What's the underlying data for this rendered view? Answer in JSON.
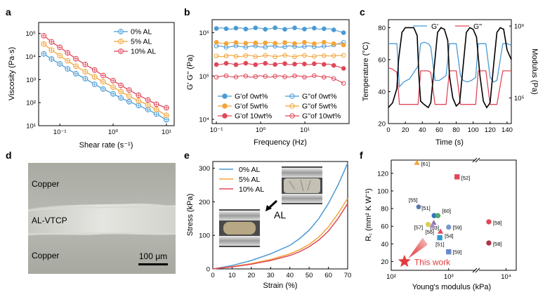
{
  "panels": {
    "a": {
      "letter": "a"
    },
    "b": {
      "letter": "b"
    },
    "c": {
      "letter": "c"
    },
    "d": {
      "letter": "d",
      "labels": {
        "top": "Copper",
        "middle": "AL-VTCP",
        "bottom": "Copper",
        "scalebar": "100 μm"
      }
    },
    "e": {
      "letter": "e",
      "annotation": "AL"
    },
    "f": {
      "letter": "f",
      "highlight": "This work"
    }
  },
  "colors": {
    "blue": "#4a9ad4",
    "orange": "#f2a53a",
    "red": "#e0485a",
    "black": "#000000"
  },
  "chart_data": [
    {
      "panel": "a",
      "type": "line",
      "xlabel": "Shear rate (s⁻¹)",
      "ylabel": "Viscosity (Pa·s)",
      "xscale": "log",
      "yscale": "log",
      "xlim": [
        0.04,
        14
      ],
      "ylim": [
        10,
        300000
      ],
      "xticks": [
        {
          "v": 0.1,
          "label": "10⁻¹"
        },
        {
          "v": 1,
          "label": "10⁰"
        },
        {
          "v": 10,
          "label": "10¹"
        }
      ],
      "yticks": [
        {
          "v": 10,
          "label": "10¹"
        },
        {
          "v": 100,
          "label": "10²"
        },
        {
          "v": 1000,
          "label": "10³"
        },
        {
          "v": 10000,
          "label": "10⁴"
        },
        {
          "v": 100000,
          "label": "10⁵"
        }
      ],
      "legend": "top-right",
      "x": [
        0.05,
        0.07,
        0.1,
        0.14,
        0.2,
        0.3,
        0.45,
        0.65,
        1,
        1.4,
        2,
        3,
        4.5,
        6.5,
        10
      ],
      "series": [
        {
          "name": "0% AL",
          "color": "#4a9ad4",
          "y": [
            13000,
            7800,
            4800,
            2900,
            1800,
            1100,
            620,
            390,
            240,
            160,
            110,
            75,
            50,
            32,
            18
          ]
        },
        {
          "name": "5% AL",
          "color": "#f2a53a",
          "y": [
            35000,
            19000,
            11000,
            6500,
            3800,
            2200,
            1300,
            800,
            470,
            300,
            190,
            120,
            80,
            50,
            28
          ]
        },
        {
          "name": "10% AL",
          "color": "#e0485a",
          "y": [
            80000,
            43000,
            25000,
            14500,
            8000,
            4500,
            2600,
            1500,
            900,
            560,
            350,
            210,
            130,
            85,
            60
          ]
        }
      ]
    },
    {
      "panel": "b",
      "type": "line",
      "xlabel": "Frequency (Hz)",
      "ylabel": "G' G'' (Pa)",
      "xscale": "log",
      "yscale": "log",
      "xlim": [
        0.08,
        100
      ],
      "ylim": [
        8000,
        2000000
      ],
      "xticks": [
        {
          "v": 0.1,
          "label": "10⁻¹"
        },
        {
          "v": 1,
          "label": "10⁰"
        },
        {
          "v": 10,
          "label": "10¹"
        }
      ],
      "yticks": [
        {
          "v": 10000,
          "label": "10⁴"
        },
        {
          "v": 100000,
          "label": "10⁵"
        },
        {
          "v": 1000000,
          "label": "10⁶"
        }
      ],
      "legend": "bottom",
      "series": [
        {
          "name": "G'of 0wt%",
          "color": "#4a9ad4",
          "filled": true,
          "y": 1250000,
          "end": 1000000
        },
        {
          "name": "G''of 0wt%",
          "color": "#4a9ad4",
          "filled": false,
          "y": 480000,
          "end": 600000
        },
        {
          "name": "G'of 5wt%",
          "color": "#f2a53a",
          "filled": true,
          "y": 580000,
          "end": 520000
        },
        {
          "name": "G''of 5wt%",
          "color": "#f2a53a",
          "filled": false,
          "y": 290000,
          "end": 300000
        },
        {
          "name": "G'of 10wt%",
          "color": "#e0485a",
          "filled": true,
          "y": 190000,
          "end": 150000
        },
        {
          "name": "G''of 10wt%",
          "color": "#e0485a",
          "filled": false,
          "y": 98000,
          "end": 68000
        }
      ]
    },
    {
      "panel": "c",
      "type": "line",
      "xlabel": "Time (s)",
      "ylabel": "Temperature (°C)",
      "y2label": "Modulus (Pa)",
      "xlim": [
        0,
        145
      ],
      "ylim": [
        20,
        85
      ],
      "xticks": [
        0,
        20,
        40,
        60,
        80,
        100,
        120,
        140
      ],
      "yticks": [
        20,
        40,
        60,
        80
      ],
      "y2ticks": [
        {
          "label": "10⁵",
          "at": 36
        },
        {
          "label": "10⁶",
          "at": 81
        }
      ],
      "legend": "top",
      "temperature": {
        "color": "#000000",
        "x": [
          0,
          5,
          10,
          12,
          16,
          20,
          25,
          30,
          34,
          36,
          38,
          42,
          47,
          50,
          54,
          58,
          62,
          66,
          70,
          72,
          76,
          80,
          84,
          88,
          92,
          96,
          100,
          104,
          108,
          112,
          116,
          120,
          124,
          128,
          132,
          136,
          140,
          145
        ],
        "y": [
          30,
          33,
          42,
          60,
          77,
          80,
          80,
          80,
          75,
          50,
          34,
          32,
          30,
          33,
          55,
          77,
          80,
          79,
          72,
          50,
          36,
          31,
          33,
          55,
          77,
          80,
          79,
          74,
          50,
          34,
          30,
          33,
          56,
          77,
          80,
          79,
          66,
          60
        ]
      },
      "series": [
        {
          "name": "G'",
          "color": "#4a9ad4",
          "x": [
            0,
            5,
            10,
            13,
            18,
            25,
            30,
            35,
            38,
            42,
            47,
            50,
            55,
            60,
            63,
            68,
            72,
            76,
            80,
            85,
            88,
            93,
            98,
            103,
            106,
            110,
            115,
            120,
            124,
            128,
            135,
            140,
            145
          ],
          "y": [
            70,
            70,
            70,
            43,
            46,
            48,
            52,
            56,
            70,
            71,
            70,
            68,
            47,
            47,
            48,
            50,
            70,
            70,
            70,
            50,
            47,
            46,
            47,
            49,
            70,
            70,
            70,
            49,
            46,
            47,
            70,
            70,
            69
          ]
        },
        {
          "name": "G''",
          "color": "#e0485a",
          "x": [
            0,
            5,
            10,
            13,
            18,
            25,
            30,
            35,
            38,
            42,
            47,
            50,
            55,
            60,
            63,
            68,
            72,
            76,
            80,
            85,
            88,
            93,
            98,
            103,
            106,
            110,
            115,
            120,
            124,
            128,
            135,
            140,
            145
          ],
          "y": [
            55,
            54,
            52,
            32,
            32,
            32,
            32,
            32,
            53,
            53,
            53,
            52,
            32,
            32,
            32,
            32,
            53,
            53,
            53,
            32,
            32,
            32,
            32,
            32,
            53,
            53,
            53,
            32,
            32,
            32,
            53,
            53,
            53
          ]
        }
      ]
    },
    {
      "panel": "e",
      "type": "line",
      "xlabel": "Strain (%)",
      "ylabel": "Stress (kPa)",
      "xlim": [
        0,
        70
      ],
      "ylim": [
        0,
        320
      ],
      "xticks": [
        0,
        10,
        20,
        30,
        40,
        50,
        60,
        70
      ],
      "yticks": [
        0,
        100,
        200,
        300
      ],
      "legend": "top-left",
      "x": [
        0,
        10,
        20,
        30,
        40,
        45,
        50,
        55,
        60,
        65,
        70
      ],
      "series": [
        {
          "name": "0% AL",
          "color": "#4a9ad4",
          "y": [
            0,
            10,
            25,
            45,
            70,
            90,
            115,
            150,
            195,
            250,
            315
          ]
        },
        {
          "name": "5% AL",
          "color": "#f2a53a",
          "y": [
            0,
            7,
            16,
            28,
            45,
            57,
            73,
            95,
            125,
            165,
            210
          ]
        },
        {
          "name": "10% AL",
          "color": "#e0485a",
          "y": [
            0,
            6,
            14,
            25,
            40,
            51,
            66,
            86,
            113,
            150,
            195
          ]
        }
      ]
    },
    {
      "panel": "f",
      "type": "scatter",
      "xlabel": "Young's modulus (kPa)",
      "ylabel": "R꜀ (mm² K W⁻¹)",
      "xscale": "log",
      "xlim": [
        100,
        15000
      ],
      "ylim": [
        10,
        135
      ],
      "xticks": [
        {
          "v": 100,
          "label": "10²"
        },
        {
          "v": 1000,
          "label": "10³"
        },
        {
          "v": 10000,
          "label": "10⁴"
        }
      ],
      "yticks": [
        20,
        40,
        60,
        80,
        100,
        120
      ],
      "points": [
        {
          "label": "[61]",
          "x": 280,
          "y": 132,
          "color": "#f2a53a",
          "marker": "triangle"
        },
        {
          "label": "[52]",
          "x": 1400,
          "y": 116,
          "color": "#e0485a",
          "marker": "square"
        },
        {
          "label": "[55]",
          "x": 300,
          "y": 82,
          "color": "#5577aa",
          "marker": "pentagon"
        },
        {
          "label": "[51]",
          "x": 560,
          "y": 72,
          "color": "#3377bb",
          "marker": "circle"
        },
        {
          "label": "[60]",
          "x": 650,
          "y": 72,
          "color": "#55aa66",
          "marker": "circle"
        },
        {
          "label": "[53]",
          "x": 550,
          "y": 64,
          "color": "#8877aa",
          "marker": "triangle"
        },
        {
          "label": "[57]",
          "x": 440,
          "y": 62,
          "color": "#ddcc55",
          "marker": "circle"
        },
        {
          "label": "[56]",
          "x": 520,
          "y": 61,
          "color": "#aa88cc",
          "marker": "triangle"
        },
        {
          "label": "[59]",
          "x": 1000,
          "y": 59,
          "color": "#7799cc",
          "marker": "circle"
        },
        {
          "label": "[54]",
          "x": 720,
          "y": 54,
          "color": "#e0485a",
          "marker": "triangle"
        },
        {
          "label": "[51]",
          "x": 700,
          "y": 47,
          "color": "#3399cc",
          "marker": "square"
        },
        {
          "label": "[58]",
          "x": 5000,
          "y": 65,
          "color": "#e0485a",
          "marker": "circle"
        },
        {
          "label": "[58]",
          "x": 5000,
          "y": 41,
          "color": "#aa3344",
          "marker": "circle"
        },
        {
          "label": "[59]",
          "x": 1000,
          "y": 31,
          "color": "#6688cc",
          "marker": "square"
        },
        {
          "label": "This work",
          "x": 170,
          "y": 20,
          "color": "#e23b3b",
          "marker": "star"
        }
      ]
    }
  ]
}
